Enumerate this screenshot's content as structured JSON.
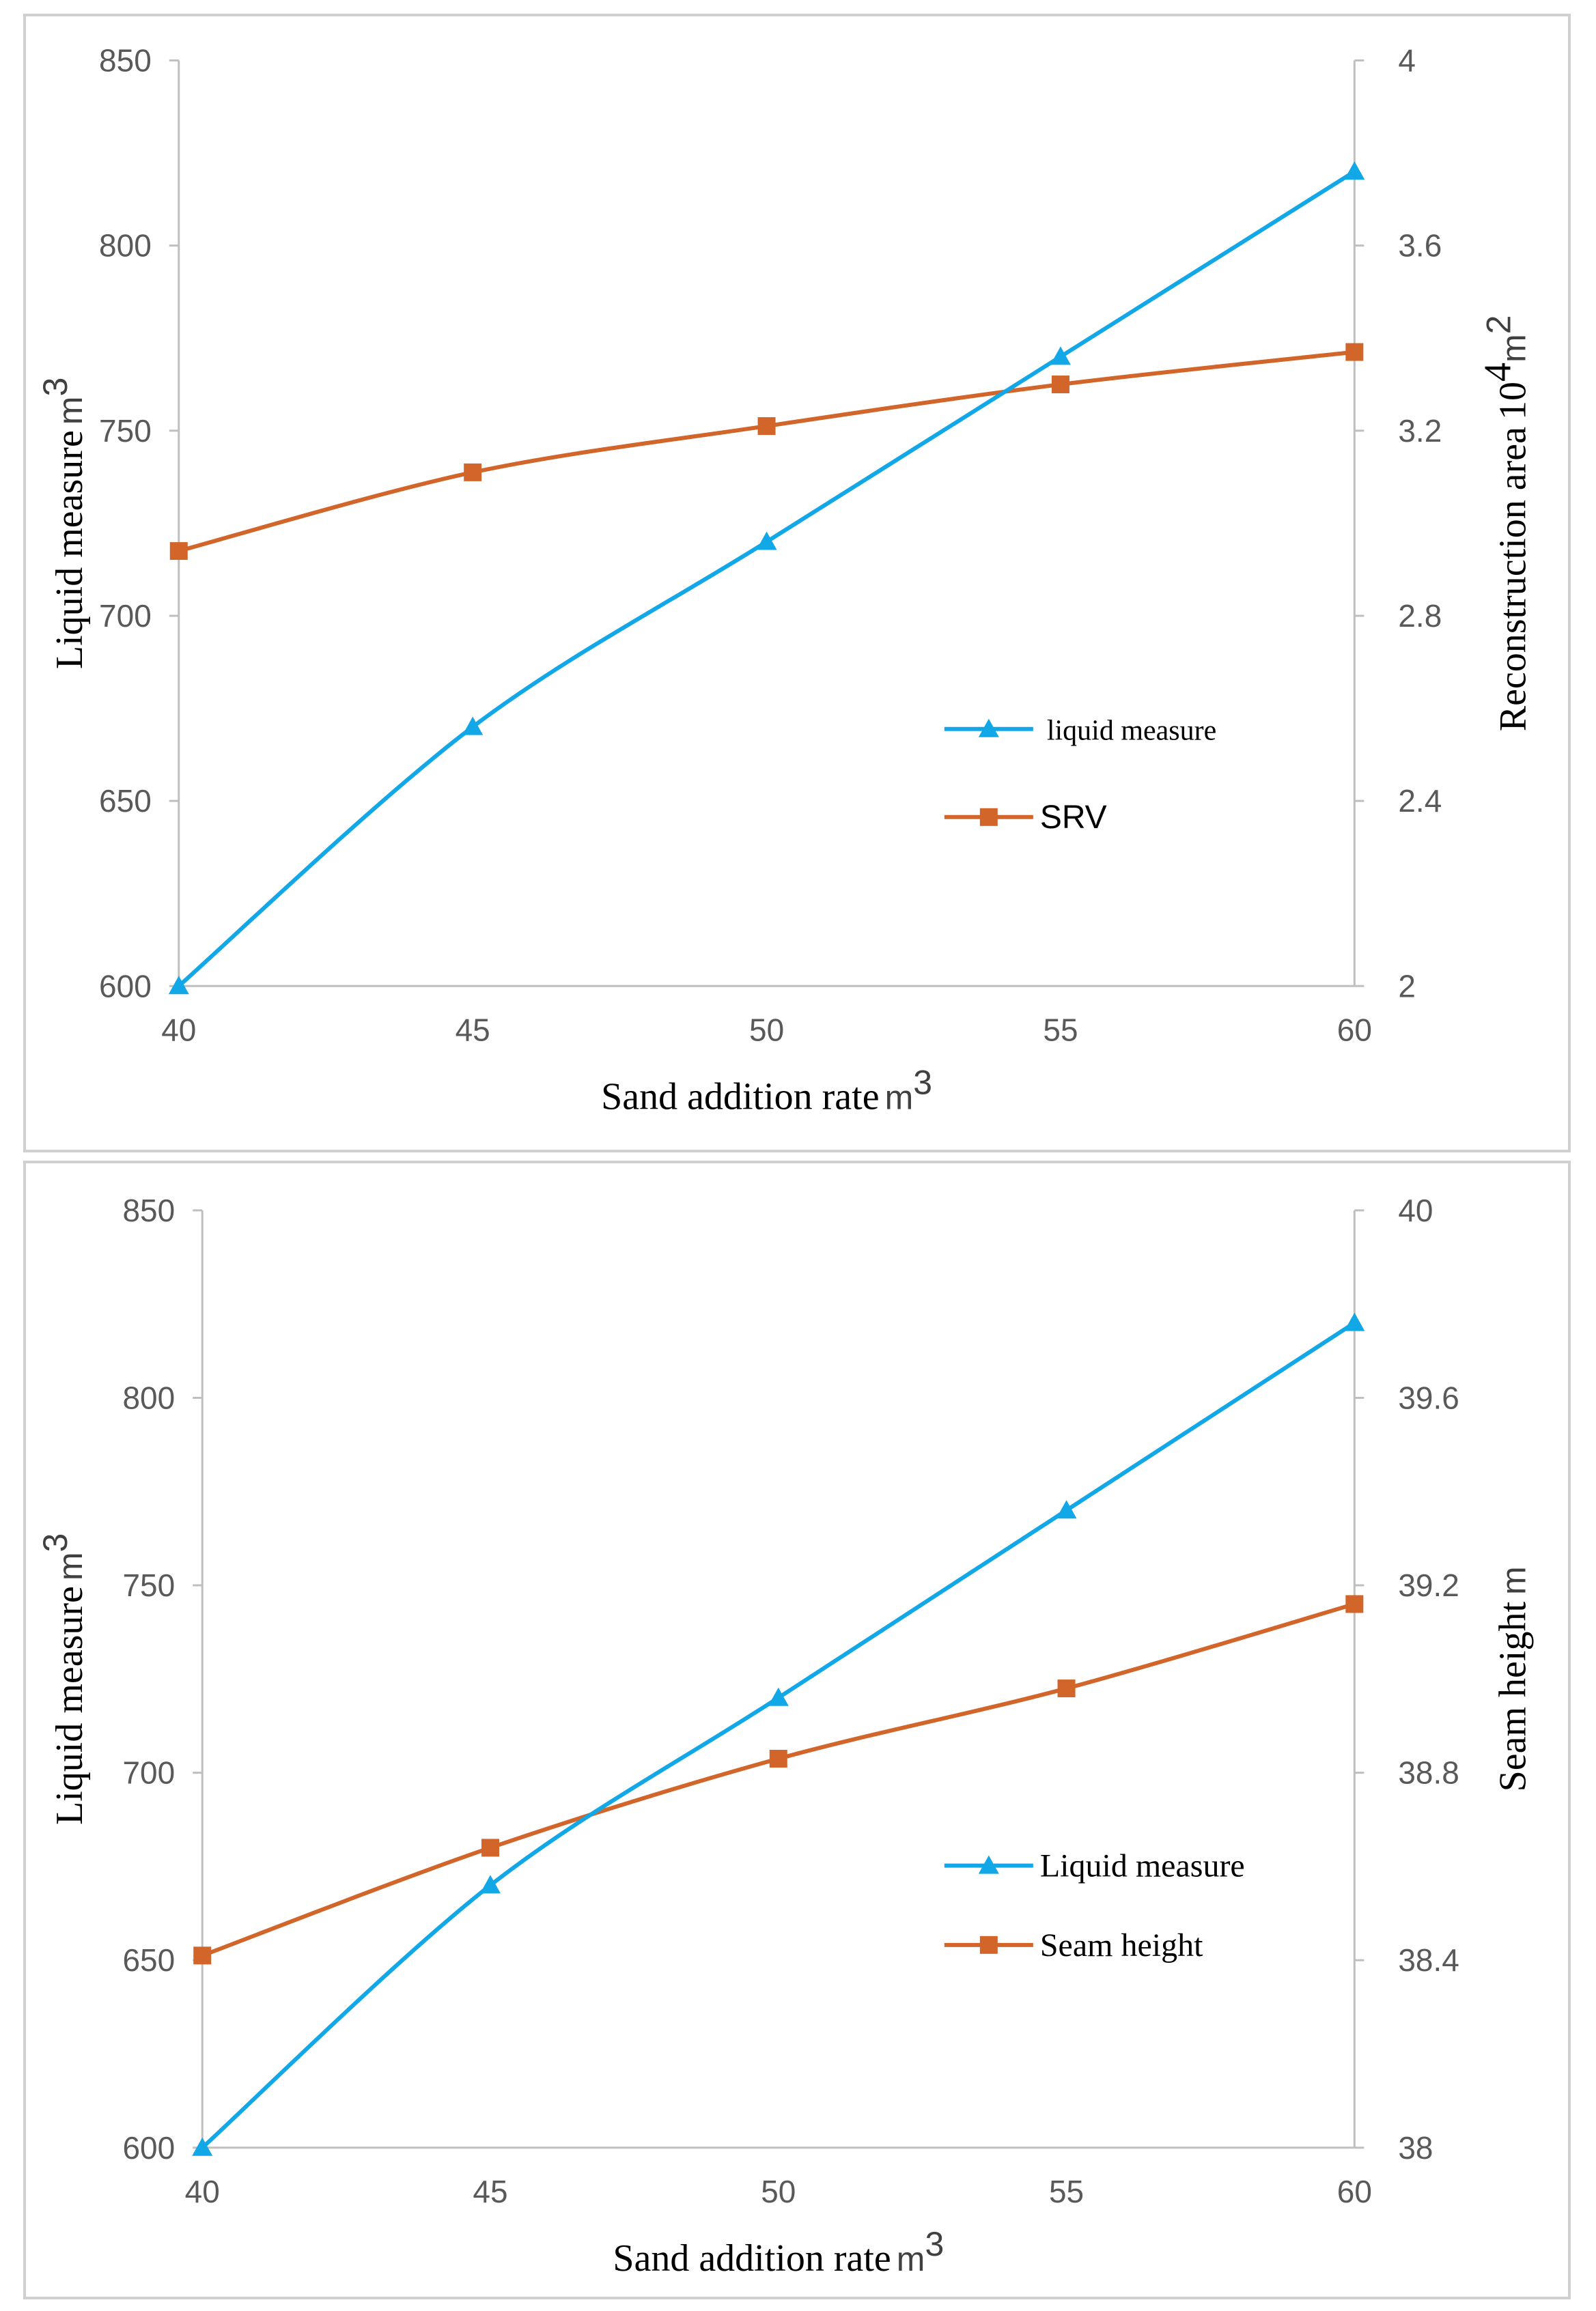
{
  "colors": {
    "blue": "#12a8e8",
    "orange": "#d2662a",
    "axis": "#bfbfbf"
  },
  "chart_data": [
    {
      "type": "line",
      "x": [
        40,
        45,
        50,
        55,
        60
      ],
      "xlim": [
        40,
        60
      ],
      "x_ticks": [
        "40",
        "45",
        "50",
        "55",
        "60"
      ],
      "xlabel": "Sand addition rate",
      "xlabel_unit": "m",
      "xlabel_unit_sup": "3",
      "ylabel_left": "Liquid measure",
      "ylabel_left_unit": "m",
      "ylabel_left_unit_sup": "3",
      "ylim_left": [
        600,
        850
      ],
      "y_ticks_left": [
        "600",
        "650",
        "700",
        "750",
        "800",
        "850"
      ],
      "ylabel_right": "Reconstruction area",
      "ylabel_right_unit_pre": "10",
      "ylabel_right_unit_sup1": "4",
      "ylabel_right_unit_mid": "m",
      "ylabel_right_unit_sup2": "2",
      "ylim_right": [
        2,
        4
      ],
      "y_ticks_right": [
        "2",
        "2.4",
        "2.8",
        "3.2",
        "3.6",
        "4"
      ],
      "series": [
        {
          "name": "liquid measure",
          "axis": "left",
          "marker": "triangle",
          "values": [
            600,
            670,
            720,
            770,
            820
          ]
        },
        {
          "name": "SRV",
          "axis": "right",
          "marker": "square",
          "values": [
            2.94,
            3.11,
            3.21,
            3.3,
            3.37
          ]
        }
      ],
      "legend": "center-right",
      "grid": false
    },
    {
      "type": "line",
      "x": [
        40,
        45,
        50,
        55,
        60
      ],
      "xlim": [
        40,
        60
      ],
      "x_ticks": [
        "40",
        "45",
        "50",
        "55",
        "60"
      ],
      "xlabel": "Sand addition rate",
      "xlabel_unit": "m",
      "xlabel_unit_sup": "3",
      "ylabel_left": "Liquid measure",
      "ylabel_left_unit": "m",
      "ylabel_left_unit_sup": "3",
      "ylim_left": [
        600,
        850
      ],
      "y_ticks_left": [
        "600",
        "650",
        "700",
        "750",
        "800",
        "850"
      ],
      "ylabel_right": "Seam height",
      "ylabel_right_unit": "m",
      "ylim_right": [
        38,
        40
      ],
      "y_ticks_right": [
        "38",
        "38.4",
        "38.8",
        "39.2",
        "39.6",
        "40"
      ],
      "series": [
        {
          "name": "Liquid measure",
          "axis": "left",
          "marker": "triangle",
          "values": [
            600,
            670,
            720,
            770,
            820
          ]
        },
        {
          "name": "Seam height",
          "axis": "right",
          "marker": "square",
          "values": [
            38.41,
            38.64,
            38.83,
            38.98,
            39.16
          ]
        }
      ],
      "legend": "bottom-right",
      "grid": false
    }
  ]
}
